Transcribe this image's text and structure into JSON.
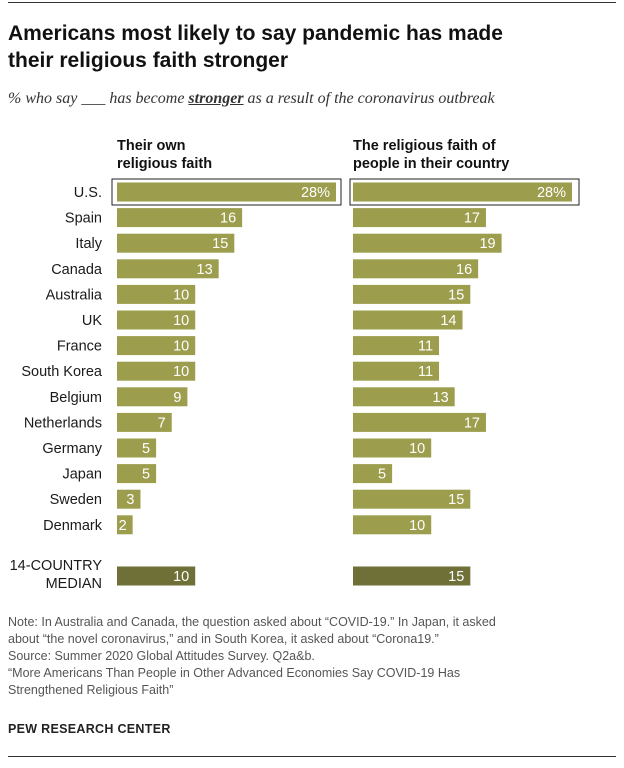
{
  "title_line1": "Americans most likely to say pandemic has made",
  "title_line2": "their religious faith stronger",
  "subtitle": {
    "pre": "% who say ___ has become ",
    "emph": "stronger",
    "post": " as a result of the coronavirus outbreak"
  },
  "notes": {
    "note_line1": "Note: In Australia and Canada, the question asked about “COVID-19.” In Japan, it asked",
    "note_line2": "about “the novel coronavirus,” and in South Korea, it asked about “Corona19.”",
    "source": "Source: Summer 2020 Global Attitudes Survey. Q2a&b.",
    "report_line1": "“More Americans Than People in Other Advanced Economies Say COVID-19 Has",
    "report_line2": "Strengthened Religious Faith”"
  },
  "org": "PEW RESEARCH CENTER",
  "colors": {
    "bar": "#9c9e4e",
    "median_bar": "#6e7037",
    "bar_label": "#ffffff"
  },
  "chart_data": {
    "type": "bar",
    "orientation": "horizontal",
    "categories": [
      "U.S.",
      "Spain",
      "Italy",
      "Canada",
      "Australia",
      "UK",
      "France",
      "South Korea",
      "Belgium",
      "Netherlands",
      "Germany",
      "Japan",
      "Sweden",
      "Denmark"
    ],
    "median_label": [
      "14-COUNTRY",
      "MEDIAN"
    ],
    "highlighted_category": "U.S.",
    "series": [
      {
        "header": [
          "Their own",
          "religious faith"
        ],
        "values": [
          28,
          16,
          15,
          13,
          10,
          10,
          10,
          10,
          9,
          7,
          5,
          5,
          3,
          2
        ],
        "value_labels": [
          "28%",
          "16",
          "15",
          "13",
          "10",
          "10",
          "10",
          "10",
          "9",
          "7",
          "5",
          "5",
          "3",
          "2"
        ],
        "median": 10
      },
      {
        "header": [
          "The religious faith of",
          "people in their country"
        ],
        "values": [
          28,
          17,
          19,
          16,
          15,
          14,
          11,
          11,
          13,
          17,
          10,
          5,
          15,
          10
        ],
        "value_labels": [
          "28%",
          "17",
          "19",
          "16",
          "15",
          "14",
          "11",
          "11",
          "13",
          "17",
          "10",
          "5",
          "15",
          "10"
        ],
        "median": 15
      }
    ]
  }
}
